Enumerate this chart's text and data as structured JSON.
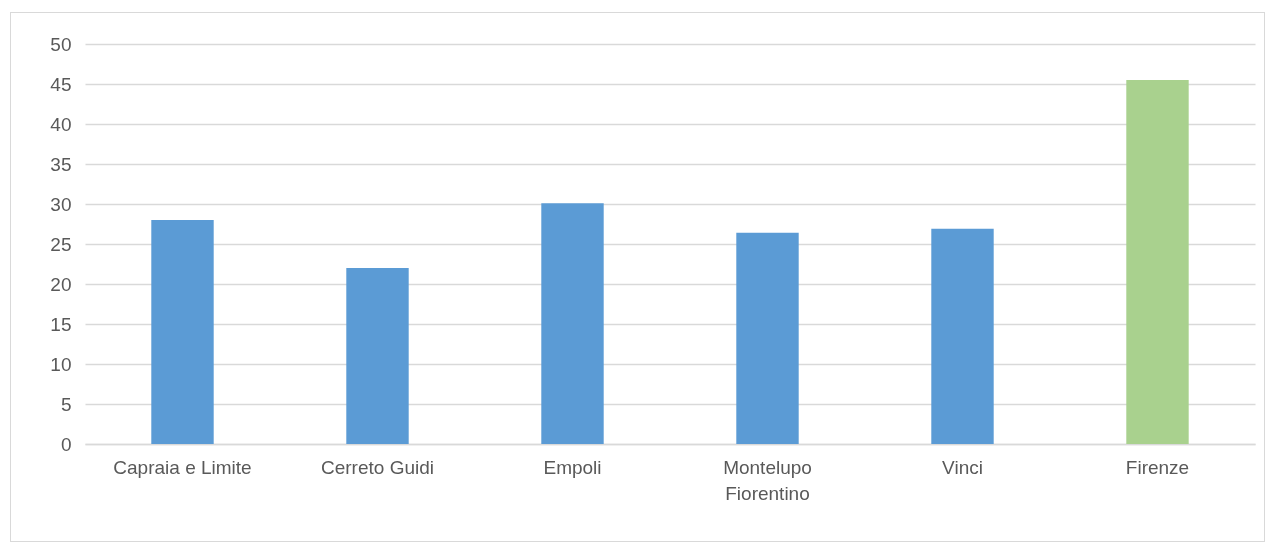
{
  "chart_data": {
    "type": "bar",
    "categories": [
      "Capraia e Limite",
      "Cerreto Guidi",
      "Empoli",
      "Montelupo Fiorentino",
      "Vinci",
      "Firenze"
    ],
    "values": [
      28,
      22,
      30.1,
      26.4,
      26.9,
      45.5
    ],
    "colors": [
      "#5b9bd5",
      "#5b9bd5",
      "#5b9bd5",
      "#5b9bd5",
      "#5b9bd5",
      "#a9d18e"
    ],
    "ylim": [
      0,
      50
    ],
    "yticks": [
      0,
      5,
      10,
      15,
      20,
      25,
      30,
      35,
      40,
      45,
      50
    ],
    "grid": "y"
  }
}
